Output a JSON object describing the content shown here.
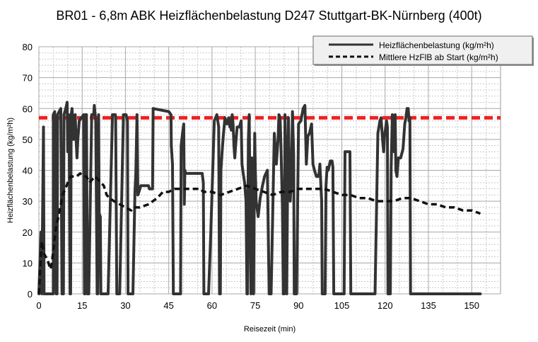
{
  "chart_data": {
    "type": "line",
    "title": "BR01 - 6,8m ABK Heizflächenbelastung D247 Stuttgart-BK-Nürnberg (400t)",
    "xlabel": "Reisezeit (min)",
    "ylabel": "Heizflächenbelastung (kg/m²h)",
    "xlim": [
      0,
      160
    ],
    "ylim": [
      0,
      80
    ],
    "x_ticks": [
      "0",
      "15",
      "30",
      "45",
      "60",
      "75",
      "90",
      "105",
      "120",
      "135",
      "150"
    ],
    "y_ticks": [
      "0",
      "10",
      "20",
      "30",
      "40",
      "50",
      "60",
      "70",
      "80"
    ],
    "grid": true,
    "legend_position": "top-right",
    "reference_line": {
      "y": 57,
      "color": "#ee2222",
      "style": "dashed"
    },
    "series": [
      {
        "name": "Heizflächenbelastung (kg/m²h)",
        "color": "#333333",
        "style": "solid",
        "points": [
          [
            0,
            0
          ],
          [
            0.7,
            20
          ],
          [
            1,
            0
          ],
          [
            1.6,
            54
          ],
          [
            1.8,
            0
          ],
          [
            5,
            0
          ],
          [
            5,
            58
          ],
          [
            5.5,
            59
          ],
          [
            6,
            0
          ],
          [
            6.3,
            0
          ],
          [
            6.5,
            58
          ],
          [
            7,
            59
          ],
          [
            7.6,
            60
          ],
          [
            8,
            0
          ],
          [
            8.5,
            0
          ],
          [
            8.7,
            58
          ],
          [
            9.3,
            60
          ],
          [
            9.8,
            62
          ],
          [
            10,
            46
          ],
          [
            10.3,
            58
          ],
          [
            10.5,
            50
          ],
          [
            10.8,
            0
          ],
          [
            11,
            0
          ],
          [
            11.2,
            58
          ],
          [
            11.5,
            60
          ],
          [
            11.8,
            55
          ],
          [
            12,
            50
          ],
          [
            12.3,
            55
          ],
          [
            12.6,
            58
          ],
          [
            12.9,
            50
          ],
          [
            13.2,
            44
          ],
          [
            13.5,
            50
          ],
          [
            14,
            56
          ],
          [
            15.5,
            58
          ],
          [
            15.8,
            0
          ],
          [
            16,
            0
          ],
          [
            16.1,
            58
          ],
          [
            16.5,
            58
          ],
          [
            16.8,
            0
          ],
          [
            17.3,
            0
          ],
          [
            18.3,
            58
          ],
          [
            19,
            58
          ],
          [
            19.2,
            61
          ],
          [
            19.7,
            56
          ],
          [
            20.2,
            0
          ],
          [
            20.4,
            0
          ],
          [
            20.7,
            58
          ],
          [
            20.9,
            26
          ],
          [
            21.3,
            25
          ],
          [
            21.5,
            0
          ],
          [
            24,
            0
          ],
          [
            25.5,
            58
          ],
          [
            26.5,
            58
          ],
          [
            26.6,
            56
          ],
          [
            27,
            0
          ],
          [
            28,
            0
          ],
          [
            29.3,
            58
          ],
          [
            30.2,
            58
          ],
          [
            30.7,
            56
          ],
          [
            30.9,
            0
          ],
          [
            32.6,
            0
          ],
          [
            33.3,
            33
          ],
          [
            33.6,
            39
          ],
          [
            34,
            58
          ],
          [
            34.3,
            32
          ],
          [
            34.7,
            33
          ],
          [
            35.3,
            35
          ],
          [
            38,
            35
          ],
          [
            38.3,
            34
          ],
          [
            39.4,
            34
          ],
          [
            39.6,
            60
          ],
          [
            45,
            59
          ],
          [
            45.8,
            58
          ],
          [
            45.9,
            48
          ],
          [
            46.3,
            42
          ],
          [
            46.6,
            0
          ],
          [
            49.1,
            0
          ],
          [
            49.3,
            48
          ],
          [
            49.9,
            53
          ],
          [
            50.2,
            55
          ],
          [
            50.4,
            29
          ],
          [
            50.6,
            40
          ],
          [
            50.9,
            39
          ],
          [
            54,
            39
          ],
          [
            56.6,
            39
          ],
          [
            57,
            36
          ],
          [
            57.2,
            0
          ],
          [
            58.8,
            0
          ],
          [
            59.6,
            20
          ],
          [
            60.8,
            56
          ],
          [
            61.7,
            58
          ],
          [
            62.3,
            54
          ],
          [
            62.6,
            0
          ],
          [
            62.9,
            0
          ],
          [
            63.1,
            40
          ],
          [
            63.5,
            46
          ],
          [
            63.9,
            51
          ],
          [
            64.5,
            57
          ],
          [
            65.2,
            55
          ],
          [
            65.8,
            57
          ],
          [
            66.2,
            54
          ],
          [
            66.4,
            55
          ],
          [
            66.7,
            53
          ],
          [
            67,
            58
          ],
          [
            67.3,
            55
          ],
          [
            67.6,
            48
          ],
          [
            67.9,
            44
          ],
          [
            68.2,
            48
          ],
          [
            68.7,
            54
          ],
          [
            69.5,
            54
          ],
          [
            70.1,
            56
          ],
          [
            70.4,
            42
          ],
          [
            70.8,
            39
          ],
          [
            71.3,
            36
          ],
          [
            71.8,
            30
          ],
          [
            72.1,
            0
          ],
          [
            72.3,
            0
          ],
          [
            72.6,
            50
          ],
          [
            72.9,
            58
          ],
          [
            73.2,
            28
          ],
          [
            73.5,
            0
          ],
          [
            73.8,
            44
          ],
          [
            74.1,
            39
          ],
          [
            74.4,
            0
          ],
          [
            74.8,
            52
          ],
          [
            75,
            41
          ],
          [
            75.3,
            30
          ],
          [
            76,
            25
          ],
          [
            76.7,
            31
          ],
          [
            77.5,
            35
          ],
          [
            78.2,
            38
          ],
          [
            79.2,
            40
          ],
          [
            79.8,
            0
          ],
          [
            80.5,
            0
          ],
          [
            81.6,
            52
          ],
          [
            82.3,
            42
          ],
          [
            82.9,
            50
          ],
          [
            83.2,
            58
          ],
          [
            83.6,
            57
          ],
          [
            83.9,
            48
          ],
          [
            84.4,
            28
          ],
          [
            84.7,
            0
          ],
          [
            85,
            0
          ],
          [
            85.3,
            58
          ],
          [
            85.6,
            40
          ],
          [
            85.9,
            0
          ],
          [
            86.2,
            37
          ],
          [
            86.5,
            57
          ],
          [
            86.8,
            38
          ],
          [
            87.1,
            30
          ],
          [
            87.5,
            37
          ],
          [
            87.9,
            59
          ],
          [
            88.3,
            45
          ],
          [
            88.5,
            0
          ],
          [
            89.3,
            0
          ],
          [
            90,
            55
          ],
          [
            90.8,
            56
          ],
          [
            91.2,
            58
          ],
          [
            91.6,
            60
          ],
          [
            92.2,
            61
          ],
          [
            92.5,
            50
          ],
          [
            92.7,
            42
          ],
          [
            93.2,
            51
          ],
          [
            93.8,
            52
          ],
          [
            94.5,
            55
          ],
          [
            95,
            42
          ],
          [
            95.5,
            40
          ],
          [
            96.2,
            38
          ],
          [
            96.8,
            38
          ],
          [
            97.1,
            39
          ],
          [
            97.4,
            42
          ],
          [
            97.6,
            38
          ],
          [
            98,
            30
          ],
          [
            98.2,
            0
          ],
          [
            99.2,
            0
          ],
          [
            99.5,
            35
          ],
          [
            99.9,
            41
          ],
          [
            100.3,
            40
          ],
          [
            101,
            43
          ],
          [
            101.6,
            43
          ],
          [
            101.9,
            41
          ],
          [
            102.2,
            0
          ],
          [
            105.8,
            0
          ],
          [
            106.1,
            46
          ],
          [
            107.8,
            46
          ],
          [
            108.1,
            0
          ],
          [
            116.5,
            0
          ],
          [
            117.5,
            52
          ],
          [
            118.2,
            56
          ],
          [
            118.6,
            57
          ],
          [
            119.1,
            50
          ],
          [
            119.5,
            46
          ],
          [
            119.8,
            51
          ],
          [
            120.2,
            54
          ],
          [
            120.5,
            56
          ],
          [
            120.8,
            54
          ],
          [
            121,
            0
          ],
          [
            121.8,
            0
          ],
          [
            122.1,
            41
          ],
          [
            122.5,
            58
          ],
          [
            123.1,
            46
          ],
          [
            123.5,
            58
          ],
          [
            123.7,
            40
          ],
          [
            124.1,
            38
          ],
          [
            124.6,
            44
          ],
          [
            125.4,
            44
          ],
          [
            126.2,
            47
          ],
          [
            126.8,
            55
          ],
          [
            127.2,
            57
          ],
          [
            127.6,
            60
          ],
          [
            128,
            60
          ],
          [
            128.3,
            56
          ],
          [
            128.6,
            57
          ],
          [
            128.8,
            0
          ],
          [
            130,
            0
          ],
          [
            153,
            0
          ]
        ]
      },
      {
        "name": "Mittlere HzFlB ab Start (kg/m²h)",
        "color": "#111111",
        "style": "dashed",
        "points": [
          [
            0,
            0
          ],
          [
            1,
            17
          ],
          [
            1.8,
            13
          ],
          [
            3,
            11
          ],
          [
            4,
            8
          ],
          [
            4.5,
            10
          ],
          [
            5,
            14
          ],
          [
            6,
            22
          ],
          [
            6.8,
            25
          ],
          [
            7.4,
            28
          ],
          [
            8.2,
            32
          ],
          [
            9.2,
            34
          ],
          [
            10,
            36
          ],
          [
            11,
            38
          ],
          [
            12,
            38
          ],
          [
            13,
            38
          ],
          [
            14.3,
            39
          ],
          [
            15.5,
            38
          ],
          [
            16.5,
            38
          ],
          [
            17.5,
            36
          ],
          [
            18.5,
            37
          ],
          [
            19.5,
            38
          ],
          [
            20.5,
            37
          ],
          [
            21.5,
            36
          ],
          [
            22.5,
            35
          ],
          [
            23.5,
            32
          ],
          [
            24.5,
            31
          ],
          [
            26,
            30
          ],
          [
            28,
            29
          ],
          [
            30,
            28
          ],
          [
            32,
            27
          ],
          [
            33,
            28
          ],
          [
            35,
            28
          ],
          [
            38,
            29
          ],
          [
            41,
            31
          ],
          [
            43,
            33
          ],
          [
            45,
            33
          ],
          [
            47,
            34
          ],
          [
            50,
            34
          ],
          [
            53,
            34
          ],
          [
            56,
            34
          ],
          [
            57,
            33
          ],
          [
            60,
            33
          ],
          [
            63,
            32
          ],
          [
            66,
            33
          ],
          [
            69,
            34
          ],
          [
            72,
            35
          ],
          [
            75,
            34
          ],
          [
            78,
            33
          ],
          [
            81,
            32
          ],
          [
            84,
            33
          ],
          [
            87,
            33
          ],
          [
            90,
            34
          ],
          [
            93,
            34
          ],
          [
            96,
            34
          ],
          [
            99,
            34
          ],
          [
            102,
            33
          ],
          [
            105,
            32
          ],
          [
            108,
            32
          ],
          [
            111,
            31
          ],
          [
            114,
            31
          ],
          [
            117,
            30
          ],
          [
            120,
            30
          ],
          [
            123,
            30
          ],
          [
            126,
            31
          ],
          [
            129,
            31
          ],
          [
            132,
            30
          ],
          [
            135,
            29
          ],
          [
            138,
            29
          ],
          [
            141,
            28
          ],
          [
            144,
            28
          ],
          [
            147,
            27
          ],
          [
            150,
            27
          ],
          [
            153,
            26
          ]
        ]
      }
    ]
  }
}
